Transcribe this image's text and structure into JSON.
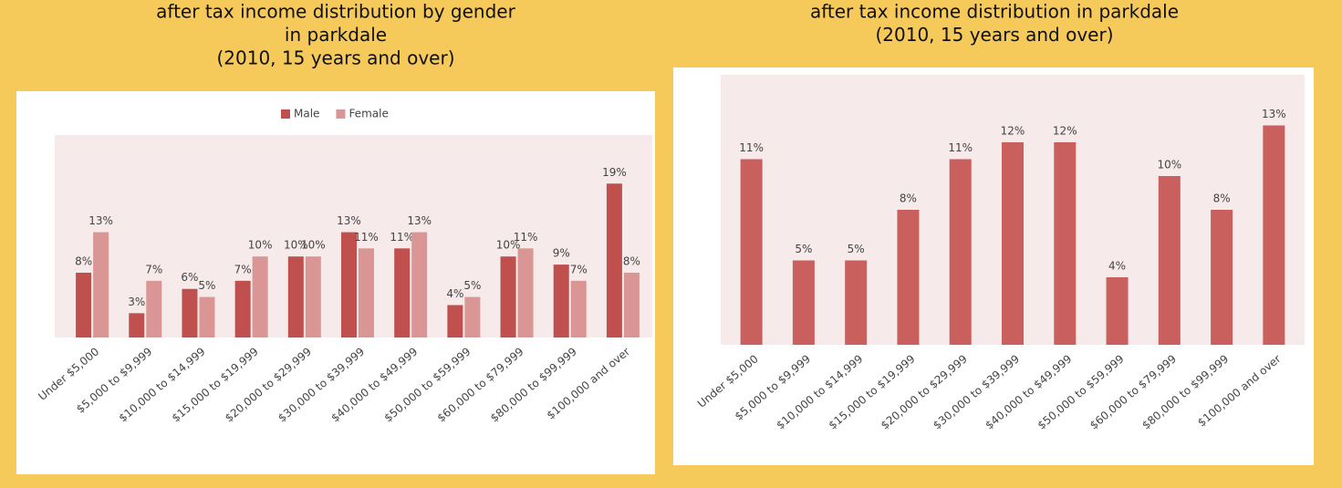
{
  "chart_data": [
    {
      "type": "bar",
      "title": [
        "after tax income distribution by gender",
        "in parkdale",
        "(2010, 15 years and over)"
      ],
      "categories": [
        "Under $5,000",
        "$5,000 to $9,999",
        "$10,000 to $14,999",
        "$15,000 to $19,999",
        "$20,000 to $29,999",
        "$30,000 to $39,999",
        "$40,000 to $49,999",
        "$50,000 to $59,999",
        "$60,000 to $79,999",
        "$80,000 to $99,999",
        "$100,000 and over"
      ],
      "series": [
        {
          "name": "Male",
          "color": "#c0504d",
          "values": [
            8,
            3,
            6,
            7,
            10,
            13,
            11,
            4,
            10,
            9,
            19
          ],
          "value_labels": [
            "8%",
            "3%",
            "6%",
            "7%",
            "10%",
            "13%",
            "11%",
            "4%",
            "10%",
            "9%",
            "19%"
          ]
        },
        {
          "name": "Female",
          "color": "#d99694",
          "values": [
            13,
            7,
            5,
            10,
            10,
            11,
            13,
            5,
            11,
            7,
            8
          ],
          "value_labels": [
            "13%",
            "7%",
            "5%",
            "10%",
            "10%",
            "11%",
            "13%",
            "5%",
            "11%",
            "7%",
            "8%"
          ]
        }
      ],
      "ylim": [
        0,
        25
      ],
      "legend": "top"
    },
    {
      "type": "bar",
      "title": [
        "after tax income distribution in parkdale",
        "(2010, 15 years and over)"
      ],
      "categories": [
        "Under $5,000",
        "$5,000 to $9,999",
        "$10,000 to $14,999",
        "$15,000 to $19,999",
        "$20,000 to $29,999",
        "$30,000 to $39,999",
        "$40,000 to $49,999",
        "$50,000 to $59,999",
        "$60,000 to $79,999",
        "$80,000 to $99,999",
        "$100,000 and over"
      ],
      "values": [
        11,
        5,
        5,
        8,
        11,
        12,
        12,
        4,
        10,
        8,
        13
      ],
      "value_labels": [
        "11%",
        "5%",
        "5%",
        "8%",
        "11%",
        "12%",
        "12%",
        "4%",
        "10%",
        "8%",
        "13%"
      ],
      "color": "#c9605e",
      "ylim": [
        0,
        16
      ]
    }
  ]
}
